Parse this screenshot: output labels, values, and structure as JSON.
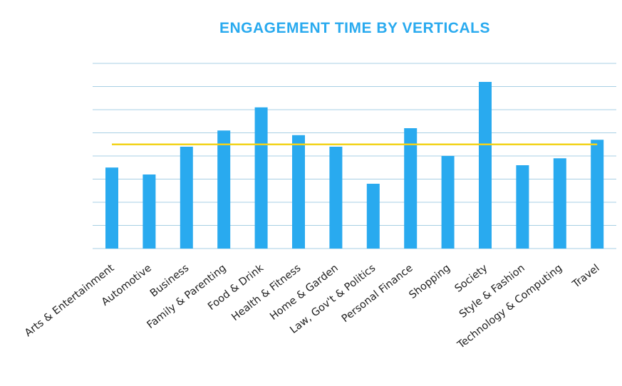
{
  "chart_data": {
    "type": "bar",
    "title": "ENGAGEMENT TIME BY VERTICALS",
    "xlabel": "",
    "ylabel": "",
    "categories": [
      "Arts & Entertainment",
      "Automotive",
      "Business",
      "Family & Parenting",
      "Food & Drink",
      "Health & Fitness",
      "Home & Garden",
      "Law, Gov't & Politics",
      "Personal Finance",
      "Shopping",
      "Society",
      "Style & Fashion",
      "Technology & Computing",
      "Travel"
    ],
    "series": [
      {
        "values": [
          3.5,
          3.2,
          4.4,
          5.1,
          6.1,
          4.9,
          4.4,
          2.8,
          5.2,
          4.0,
          7.2,
          3.6,
          3.9,
          4.7
        ]
      }
    ],
    "reference_line": {
      "value": 4.5
    },
    "ylim": [
      0,
      8
    ],
    "grid": true,
    "y_tick_labels_shown": false,
    "colors": {
      "bar": "#29aaef",
      "reference_line": "#f2d31b",
      "gridline": "#a7cfe4",
      "title": "#29aaef"
    }
  }
}
